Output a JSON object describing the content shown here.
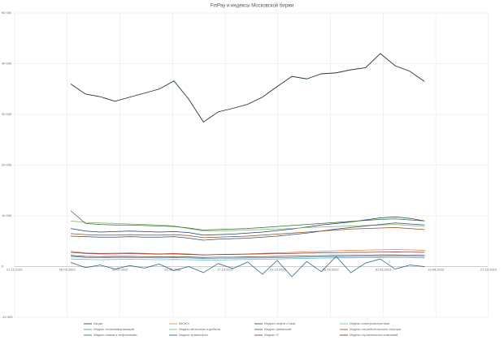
{
  "chart_data": {
    "type": "line",
    "title": "FinPay и индексы Московской биржи",
    "x": [
      "11.03.2022",
      "01.04.2022",
      "22.04.2022",
      "13.05.2022",
      "03.06.2022",
      "24.06.2022",
      "15.07.2022",
      "05.08.2022",
      "26.08.2022",
      "16.09.2022",
      "07.10.2022",
      "28.10.2022",
      "18.11.2022",
      "09.12.2022",
      "30.12.2022",
      "20.01.2023",
      "10.02.2023",
      "03.03.2023",
      "24.03.2023",
      "14.04.2023",
      "05.05.2023",
      "26.05.2023",
      "16.06.2023",
      "07.07.2023",
      "28.07.2023"
    ],
    "xlim": [
      "21.12.2021",
      "26.10.2023"
    ],
    "xticks": [
      "21.12.2021",
      "06.03.2022",
      "20.05.2022",
      "03.08.2022",
      "17.10.2022",
      "31.12.2022",
      "16.03.2023",
      "30.05.2023",
      "13.08.2023",
      "27.10.2023"
    ],
    "ylim": [
      -10000,
      50000
    ],
    "yticks": [
      {
        "value": -10000,
        "label": "-10 000"
      },
      0,
      {
        "value": 10000,
        "label": "10 000"
      },
      {
        "value": 20000,
        "label": "20 000"
      },
      {
        "value": 30000,
        "label": "30 000"
      },
      {
        "value": 40000,
        "label": "40 000"
      },
      {
        "value": 50000,
        "label": "50 000"
      }
    ],
    "grid": true,
    "series": [
      {
        "name": "Акции",
        "color": "#1f3d1f",
        "values": [
          36000,
          34000,
          33500,
          32600,
          33400,
          34200,
          35000,
          36600,
          33000,
          28500,
          30500,
          31200,
          32000,
          33400,
          35500,
          37500,
          37000,
          38000,
          38200,
          38800,
          39200,
          42000,
          39600,
          38500,
          36500
        ]
      },
      {
        "name": "IMOEX",
        "color": "#e07a3a",
        "values": [
          3000,
          2700,
          2600,
          2650,
          2700,
          2600,
          2550,
          2600,
          2500,
          2300,
          2400,
          2450,
          2500,
          2600,
          2700,
          2800,
          2900,
          3000,
          3100,
          3200,
          3250,
          3300,
          3350,
          3300,
          3200
        ]
      },
      {
        "name": "Индекс нефти и газа",
        "color": "#1f3b73",
        "values": [
          7500,
          7000,
          6800,
          6900,
          7000,
          6900,
          6800,
          6900,
          6700,
          6200,
          6300,
          6400,
          6600,
          6800,
          7100,
          7400,
          7800,
          8200,
          8500,
          8800,
          9200,
          9600,
          9800,
          9500,
          9000
        ]
      },
      {
        "name": "Индекс электроэнергетики",
        "color": "#5fb4b4",
        "values": [
          1500,
          1400,
          1350,
          1400,
          1450,
          1400,
          1350,
          1400,
          1350,
          1300,
          1300,
          1350,
          1400,
          1450,
          1500,
          1550,
          1600,
          1650,
          1700,
          1700,
          1750,
          1800,
          1800,
          1750,
          1700
        ]
      },
      {
        "name": "Индекс телекоммуникаций",
        "color": "#4a7aa8",
        "values": [
          2000,
          1800,
          1750,
          1800,
          1800,
          1750,
          1700,
          1750,
          1700,
          1600,
          1650,
          1650,
          1700,
          1700,
          1750,
          1800,
          1850,
          1900,
          1900,
          1950,
          2000,
          2000,
          2050,
          2000,
          1950
        ]
      },
      {
        "name": "Индекс металлов и добычи",
        "color": "#7fb26a",
        "values": [
          9000,
          8700,
          8600,
          8500,
          8400,
          8300,
          8200,
          8000,
          7500,
          7000,
          7000,
          7100,
          7200,
          7300,
          7400,
          7500,
          7700,
          7800,
          7900,
          8000,
          8100,
          8200,
          8300,
          8100,
          7900
        ]
      },
      {
        "name": "Индекс финансов",
        "color": "#2b4d7a",
        "values": [
          6000,
          5900,
          5800,
          5800,
          5900,
          5800,
          5800,
          5900,
          5600,
          5200,
          5400,
          5500,
          5600,
          5800,
          6000,
          6300,
          6600,
          7000,
          7400,
          7700,
          8000,
          8300,
          8600,
          8400,
          8200
        ]
      },
      {
        "name": "Индекс потребительского сектора",
        "color": "#8a4a1e",
        "values": [
          6500,
          6300,
          6200,
          6200,
          6300,
          6200,
          6200,
          6300,
          6100,
          5700,
          5800,
          5900,
          6000,
          6200,
          6400,
          6600,
          6800,
          7000,
          7200,
          7400,
          7500,
          7600,
          7700,
          7500,
          7300
        ]
      },
      {
        "name": "Индекс химии и нефтехимии",
        "color": "#2e6b2e",
        "values": [
          11000,
          8500,
          8300,
          8200,
          8200,
          8100,
          8000,
          7900,
          7600,
          7200,
          7300,
          7400,
          7500,
          7700,
          7900,
          8100,
          8300,
          8500,
          8700,
          8900,
          9100,
          9300,
          9400,
          9200,
          9000
        ]
      },
      {
        "name": "Индекс транспорта",
        "color": "#1e5a7a",
        "values": [
          800,
          -200,
          300,
          -500,
          200,
          -300,
          500,
          -800,
          0,
          -1200,
          600,
          -400,
          900,
          -1500,
          1200,
          -2000,
          1000,
          -1000,
          2000,
          -1200,
          700,
          1500,
          -500,
          300,
          0
        ]
      },
      {
        "name": "Индекс IT",
        "color": "#8a2a3a",
        "values": [
          2800,
          2600,
          2500,
          2500,
          2550,
          2500,
          2450,
          2500,
          2400,
          2300,
          2350,
          2400,
          2450,
          2500,
          2550,
          2600,
          2650,
          2700,
          2750,
          2800,
          2800,
          2850,
          2900,
          2850,
          2800
        ]
      },
      {
        "name": "Индекс строительных компаний",
        "color": "#3a3a3a",
        "values": [
          2200,
          2000,
          1950,
          2000,
          2000,
          1950,
          1900,
          1950,
          1900,
          1800,
          1850,
          1850,
          1900,
          1950,
          2000,
          2050,
          2100,
          2150,
          2200,
          2200,
          2250,
          2300,
          2300,
          2250,
          2200
        ]
      }
    ]
  }
}
